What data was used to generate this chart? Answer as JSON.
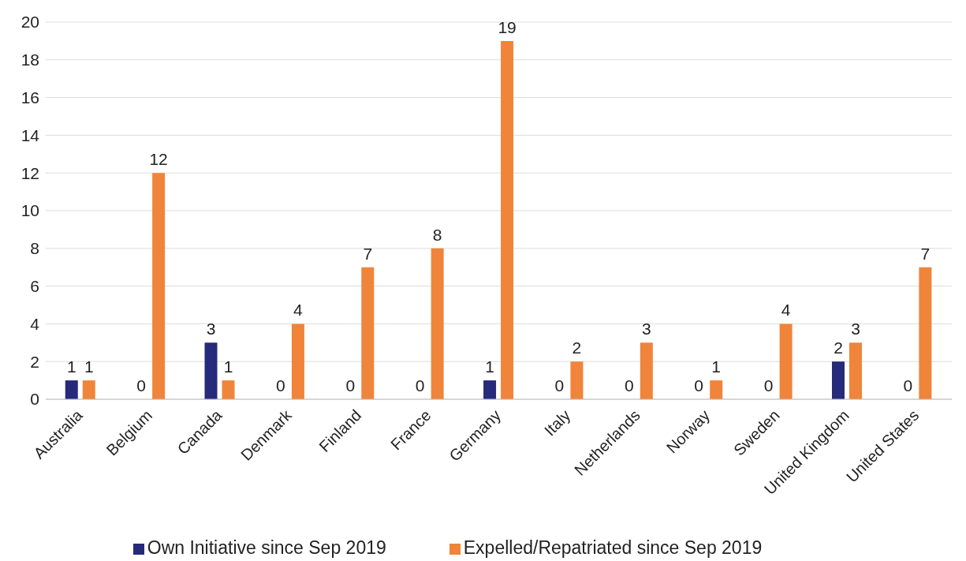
{
  "chart_data": {
    "type": "bar",
    "categories": [
      "Australia",
      "Belgium",
      "Canada",
      "Denmark",
      "Finland",
      "France",
      "Germany",
      "Italy",
      "Netherlands",
      "Norway",
      "Sweden",
      "United Kingdom",
      "United States"
    ],
    "series": [
      {
        "name": "Own Initiative since Sep 2019",
        "color": "#262a7a",
        "values": [
          1,
          0,
          3,
          0,
          0,
          0,
          1,
          0,
          0,
          0,
          0,
          2,
          0
        ]
      },
      {
        "name": "Expelled/Repatriated since Sep 2019",
        "color": "#f0843a",
        "values": [
          1,
          12,
          1,
          4,
          7,
          8,
          19,
          2,
          3,
          1,
          4,
          3,
          7
        ]
      }
    ],
    "ylim": [
      0,
      20
    ],
    "yticks": [
      0,
      2,
      4,
      6,
      8,
      10,
      12,
      14,
      16,
      18,
      20
    ],
    "grid": "y",
    "legend": "bottom",
    "data_labels": true
  }
}
